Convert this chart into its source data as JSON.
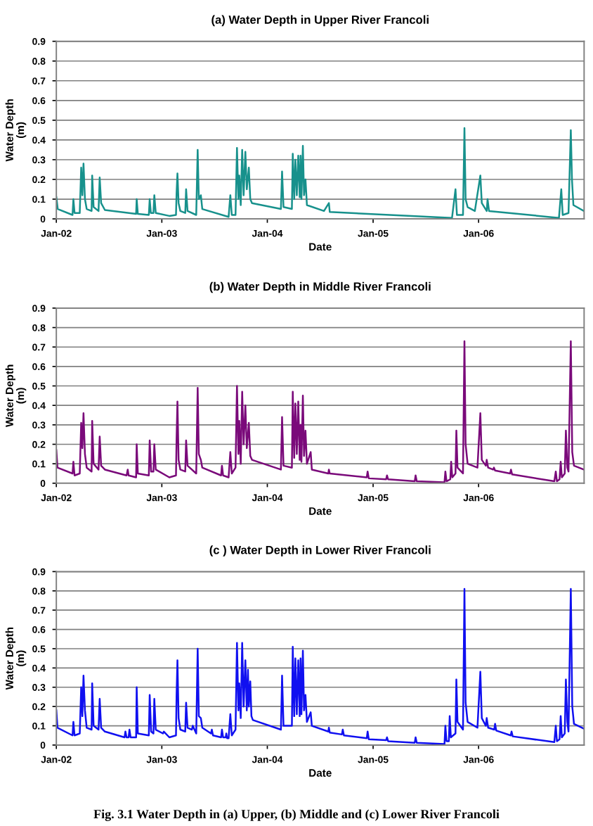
{
  "chart_data": [
    {
      "type": "line",
      "title": "(a) Water Depth in Upper River Francoli",
      "xlabel": "Date",
      "ylabel": "Water Depth\n(m)",
      "grid": "y",
      "line_style": "solid",
      "marker": "none",
      "xlim": [
        "2002-01-01",
        "2007-01-01"
      ],
      "xticks": [
        {
          "value": "2002-01-01",
          "label": "Jan-02"
        },
        {
          "value": "2003-01-01",
          "label": "Jan-03"
        },
        {
          "value": "2004-01-01",
          "label": "Jan-04"
        },
        {
          "value": "2005-01-01",
          "label": "Jan-05"
        },
        {
          "value": "2006-01-01",
          "label": "Jan-06"
        }
      ],
      "ylim": [
        0,
        0.9
      ],
      "yticks": [
        0,
        0.1,
        0.2,
        0.3,
        0.4,
        0.5,
        0.6,
        0.7,
        0.8,
        0.9
      ],
      "series": [
        {
          "color": "#17918c",
          "x": [
            "2002-01-01",
            "2002-01-06",
            "2002-02-26",
            "2002-03-01",
            "2002-03-05",
            "2002-03-23",
            "2002-03-28",
            "2002-04-01",
            "2002-04-05",
            "2002-04-10",
            "2002-04-16",
            "2002-05-03",
            "2002-05-05",
            "2002-05-10",
            "2002-05-27",
            "2002-05-31",
            "2002-06-05",
            "2002-06-18",
            "2002-10-04",
            "2002-10-06",
            "2002-10-10",
            "2002-11-17",
            "2002-11-20",
            "2002-11-24",
            "2002-12-03",
            "2002-12-06",
            "2002-12-11",
            "2003-01-27",
            "2003-02-19",
            "2003-02-21",
            "2003-02-24",
            "2003-02-28",
            "2003-03-06",
            "2003-03-23",
            "2003-03-26",
            "2003-03-31",
            "2003-04-30",
            "2003-05-05",
            "2003-05-09",
            "2003-05-16",
            "2003-05-21",
            "2003-08-20",
            "2003-08-26",
            "2003-08-31",
            "2003-09-13",
            "2003-09-18",
            "2003-09-23",
            "2003-09-26",
            "2003-10-01",
            "2003-10-06",
            "2003-10-11",
            "2003-10-17",
            "2003-10-22",
            "2003-10-29",
            "2003-11-03",
            "2003-11-09",
            "2004-02-17",
            "2004-02-21",
            "2004-02-26",
            "2004-03-26",
            "2004-03-29",
            "2004-04-03",
            "2004-04-07",
            "2004-04-12",
            "2004-04-17",
            "2004-04-22",
            "2004-04-25",
            "2004-04-28",
            "2004-05-03",
            "2004-05-07",
            "2004-05-12",
            "2004-05-17",
            "2004-07-15",
            "2004-08-01",
            "2004-08-04",
            "2005-10-01",
            "2005-10-13",
            "2005-10-18",
            "2005-11-08",
            "2005-11-13",
            "2005-11-17",
            "2005-11-24",
            "2005-12-19",
            "2006-01-07",
            "2006-01-12",
            "2006-01-29",
            "2006-02-01",
            "2006-02-06",
            "2006-10-06",
            "2006-10-14",
            "2006-10-19",
            "2006-11-08",
            "2006-11-16",
            "2006-11-20",
            "2006-11-25",
            "2006-12-31"
          ],
          "values": [
            0.11,
            0.05,
            0.02,
            0.1,
            0.03,
            0.03,
            0.26,
            0.12,
            0.28,
            0.1,
            0.05,
            0.04,
            0.22,
            0.06,
            0.04,
            0.21,
            0.08,
            0.045,
            0.025,
            0.1,
            0.025,
            0.02,
            0.1,
            0.03,
            0.03,
            0.12,
            0.03,
            0.015,
            0.02,
            0.13,
            0.23,
            0.08,
            0.04,
            0.03,
            0.15,
            0.04,
            0.02,
            0.35,
            0.1,
            0.12,
            0.05,
            0.01,
            0.12,
            0.02,
            0.02,
            0.36,
            0.1,
            0.22,
            0.07,
            0.35,
            0.12,
            0.34,
            0.15,
            0.26,
            0.1,
            0.08,
            0.05,
            0.24,
            0.06,
            0.05,
            0.33,
            0.1,
            0.3,
            0.12,
            0.32,
            0.11,
            0.32,
            0.1,
            0.37,
            0.12,
            0.2,
            0.07,
            0.04,
            0.08,
            0.035,
            0.005,
            0.15,
            0.02,
            0.02,
            0.46,
            0.1,
            0.06,
            0.04,
            0.22,
            0.08,
            0.04,
            0.1,
            0.04,
            0.005,
            0.15,
            0.02,
            0.03,
            0.45,
            0.2,
            0.07,
            0.04
          ]
        }
      ]
    },
    {
      "type": "line",
      "title": "(b) Water Depth in Middle River Francoli",
      "xlabel": "Date",
      "ylabel": "Water Depth\n(m)",
      "grid": "y",
      "line_style": "solid",
      "marker": "none",
      "xlim": [
        "2002-01-01",
        "2007-01-01"
      ],
      "xticks": [
        {
          "value": "2002-01-01",
          "label": "Jan-02"
        },
        {
          "value": "2003-01-01",
          "label": "Jan-03"
        },
        {
          "value": "2004-01-01",
          "label": "Jan-04"
        },
        {
          "value": "2005-01-01",
          "label": "Jan-05"
        },
        {
          "value": "2006-01-01",
          "label": "Jan-06"
        }
      ],
      "ylim": [
        0,
        0.9
      ],
      "yticks": [
        0,
        0.1,
        0.2,
        0.3,
        0.4,
        0.5,
        0.6,
        0.7,
        0.8,
        0.9
      ],
      "series": [
        {
          "color": "#7a0a7a",
          "x": [
            "2002-01-01",
            "2002-01-05",
            "2002-02-26",
            "2002-03-01",
            "2002-03-05",
            "2002-03-23",
            "2002-03-28",
            "2002-04-01",
            "2002-04-05",
            "2002-04-10",
            "2002-04-16",
            "2002-05-03",
            "2002-05-05",
            "2002-05-10",
            "2002-05-27",
            "2002-05-31",
            "2002-06-05",
            "2002-06-18",
            "2002-09-01",
            "2002-09-05",
            "2002-09-08",
            "2002-10-04",
            "2002-10-06",
            "2002-10-10",
            "2002-11-17",
            "2002-11-20",
            "2002-11-25",
            "2002-12-03",
            "2002-12-06",
            "2002-12-11",
            "2003-01-27",
            "2003-02-19",
            "2003-02-21",
            "2003-02-24",
            "2003-02-28",
            "2003-03-06",
            "2003-03-23",
            "2003-03-26",
            "2003-03-31",
            "2003-04-30",
            "2003-05-05",
            "2003-05-09",
            "2003-05-16",
            "2003-05-21",
            "2003-07-25",
            "2003-07-28",
            "2003-08-01",
            "2003-08-20",
            "2003-08-26",
            "2003-08-31",
            "2003-09-13",
            "2003-09-18",
            "2003-09-23",
            "2003-09-26",
            "2003-10-01",
            "2003-10-06",
            "2003-10-11",
            "2003-10-17",
            "2003-10-22",
            "2003-10-29",
            "2003-11-03",
            "2003-11-09",
            "2004-02-17",
            "2004-02-21",
            "2004-02-26",
            "2004-03-26",
            "2004-03-29",
            "2004-04-03",
            "2004-04-07",
            "2004-04-12",
            "2004-04-17",
            "2004-04-22",
            "2004-04-25",
            "2004-04-28",
            "2004-05-03",
            "2004-05-07",
            "2004-05-12",
            "2004-05-17",
            "2004-05-30",
            "2004-06-03",
            "2004-07-30",
            "2004-08-01",
            "2004-08-04",
            "2004-12-10",
            "2004-12-13",
            "2004-12-17",
            "2005-02-15",
            "2005-02-18",
            "2005-02-22",
            "2005-05-25",
            "2005-05-28",
            "2005-06-01",
            "2005-09-05",
            "2005-09-08",
            "2005-09-12",
            "2005-09-25",
            "2005-09-28",
            "2005-10-02",
            "2005-10-13",
            "2005-10-16",
            "2005-10-20",
            "2005-11-08",
            "2005-11-13",
            "2005-11-17",
            "2005-11-24",
            "2005-12-28",
            "2006-01-07",
            "2006-01-12",
            "2006-01-26",
            "2006-01-29",
            "2006-02-03",
            "2006-02-20",
            "2006-02-23",
            "2006-02-27",
            "2006-04-20",
            "2006-04-23",
            "2006-04-27",
            "2006-09-20",
            "2006-09-25",
            "2006-09-29",
            "2006-10-08",
            "2006-10-12",
            "2006-10-16",
            "2006-10-26",
            "2006-10-30",
            "2006-11-04",
            "2006-11-08",
            "2006-11-16",
            "2006-11-21",
            "2006-11-27",
            "2006-12-31"
          ],
          "values": [
            0.17,
            0.08,
            0.05,
            0.11,
            0.04,
            0.05,
            0.31,
            0.18,
            0.36,
            0.15,
            0.08,
            0.06,
            0.32,
            0.1,
            0.07,
            0.24,
            0.09,
            0.07,
            0.04,
            0.07,
            0.04,
            0.03,
            0.2,
            0.05,
            0.04,
            0.22,
            0.06,
            0.06,
            0.2,
            0.07,
            0.03,
            0.04,
            0.23,
            0.42,
            0.12,
            0.07,
            0.06,
            0.22,
            0.09,
            0.05,
            0.49,
            0.15,
            0.12,
            0.08,
            0.04,
            0.09,
            0.04,
            0.03,
            0.16,
            0.05,
            0.08,
            0.5,
            0.15,
            0.32,
            0.1,
            0.47,
            0.2,
            0.4,
            0.18,
            0.31,
            0.14,
            0.12,
            0.07,
            0.34,
            0.09,
            0.08,
            0.47,
            0.13,
            0.41,
            0.15,
            0.42,
            0.12,
            0.3,
            0.11,
            0.45,
            0.14,
            0.27,
            0.1,
            0.16,
            0.07,
            0.05,
            0.07,
            0.05,
            0.03,
            0.06,
            0.025,
            0.02,
            0.04,
            0.02,
            0.01,
            0.04,
            0.01,
            0.005,
            0.06,
            0.01,
            0.02,
            0.11,
            0.03,
            0.05,
            0.27,
            0.08,
            0.05,
            0.73,
            0.2,
            0.1,
            0.08,
            0.36,
            0.12,
            0.09,
            0.12,
            0.08,
            0.07,
            0.08,
            0.065,
            0.05,
            0.07,
            0.045,
            0.01,
            0.06,
            0.01,
            0.02,
            0.11,
            0.03,
            0.05,
            0.27,
            0.08,
            0.06,
            0.73,
            0.16,
            0.09,
            0.07
          ]
        }
      ]
    },
    {
      "type": "line",
      "title": "(c ) Water Depth in Lower River Francoli",
      "xlabel": "Date",
      "ylabel": "Water Depth\n(m)",
      "grid": "y",
      "line_style": "solid",
      "marker": "none",
      "annotations": [
        "Fig. 3.1 Water Depth in (a) Upper, (b) Middle and (c) Lower River Francoli"
      ],
      "xlim": [
        "2002-01-01",
        "2007-01-01"
      ],
      "xticks": [
        {
          "value": "2002-01-01",
          "label": "Jan-02"
        },
        {
          "value": "2003-01-01",
          "label": "Jan-03"
        },
        {
          "value": "2004-01-01",
          "label": "Jan-04"
        },
        {
          "value": "2005-01-01",
          "label": "Jan-05"
        },
        {
          "value": "2006-01-01",
          "label": "Jan-06"
        }
      ],
      "ylim": [
        0,
        0.9
      ],
      "yticks": [
        0,
        0.1,
        0.2,
        0.3,
        0.4,
        0.5,
        0.6,
        0.7,
        0.8,
        0.9
      ],
      "series": [
        {
          "color": "#1010f0",
          "x": [
            "2002-01-01",
            "2002-01-05",
            "2002-02-26",
            "2002-03-01",
            "2002-03-05",
            "2002-03-23",
            "2002-03-28",
            "2002-04-01",
            "2002-04-05",
            "2002-04-10",
            "2002-04-16",
            "2002-05-03",
            "2002-05-05",
            "2002-05-10",
            "2002-05-27",
            "2002-05-31",
            "2002-06-05",
            "2002-06-18",
            "2002-08-25",
            "2002-08-28",
            "2002-09-01",
            "2002-09-08",
            "2002-09-11",
            "2002-09-15",
            "2002-10-04",
            "2002-10-06",
            "2002-10-10",
            "2002-11-17",
            "2002-11-20",
            "2002-11-25",
            "2002-12-03",
            "2002-12-06",
            "2002-12-11",
            "2003-01-05",
            "2003-01-08",
            "2003-01-27",
            "2003-02-19",
            "2003-02-21",
            "2003-02-24",
            "2003-02-28",
            "2003-03-06",
            "2003-03-23",
            "2003-03-26",
            "2003-03-31",
            "2003-04-15",
            "2003-04-18",
            "2003-04-30",
            "2003-05-05",
            "2003-05-09",
            "2003-05-16",
            "2003-05-21",
            "2003-06-20",
            "2003-06-23",
            "2003-06-27",
            "2003-07-25",
            "2003-07-28",
            "2003-08-01",
            "2003-08-10",
            "2003-08-12",
            "2003-08-15",
            "2003-08-20",
            "2003-08-26",
            "2003-08-31",
            "2003-09-13",
            "2003-09-18",
            "2003-09-23",
            "2003-09-26",
            "2003-10-01",
            "2003-10-06",
            "2003-10-11",
            "2003-10-17",
            "2003-10-22",
            "2003-10-26",
            "2003-10-29",
            "2003-11-03",
            "2003-11-07",
            "2003-11-12",
            "2004-02-17",
            "2004-02-19",
            "2004-02-21",
            "2004-02-26",
            "2004-03-26",
            "2004-03-29",
            "2004-04-03",
            "2004-04-07",
            "2004-04-12",
            "2004-04-17",
            "2004-04-22",
            "2004-04-25",
            "2004-04-28",
            "2004-05-03",
            "2004-05-07",
            "2004-05-12",
            "2004-05-17",
            "2004-05-30",
            "2004-06-03",
            "2004-07-30",
            "2004-08-01",
            "2004-08-04",
            "2004-09-15",
            "2004-09-18",
            "2004-09-22",
            "2004-12-10",
            "2004-12-13",
            "2004-12-17",
            "2005-02-15",
            "2005-02-18",
            "2005-02-22",
            "2005-05-25",
            "2005-05-28",
            "2005-06-01",
            "2005-09-05",
            "2005-09-08",
            "2005-09-12",
            "2005-09-20",
            "2005-09-23",
            "2005-09-27",
            "2005-10-13",
            "2005-10-16",
            "2005-10-20",
            "2005-11-08",
            "2005-11-13",
            "2005-11-17",
            "2005-11-24",
            "2005-12-28",
            "2006-01-07",
            "2006-01-12",
            "2006-01-26",
            "2006-01-29",
            "2006-02-03",
            "2006-02-24",
            "2006-02-27",
            "2006-03-03",
            "2006-04-22",
            "2006-04-25",
            "2006-04-29",
            "2006-09-20",
            "2006-09-25",
            "2006-09-29",
            "2006-10-08",
            "2006-10-12",
            "2006-10-16",
            "2006-10-26",
            "2006-10-30",
            "2006-11-04",
            "2006-11-08",
            "2006-11-16",
            "2006-11-21",
            "2006-11-27",
            "2006-12-31"
          ],
          "values": [
            0.18,
            0.09,
            0.05,
            0.12,
            0.05,
            0.06,
            0.3,
            0.15,
            0.36,
            0.18,
            0.09,
            0.08,
            0.32,
            0.1,
            0.08,
            0.24,
            0.09,
            0.07,
            0.04,
            0.07,
            0.04,
            0.04,
            0.08,
            0.04,
            0.04,
            0.3,
            0.06,
            0.05,
            0.26,
            0.07,
            0.06,
            0.24,
            0.08,
            0.06,
            0.07,
            0.04,
            0.05,
            0.26,
            0.44,
            0.14,
            0.08,
            0.07,
            0.22,
            0.09,
            0.08,
            0.1,
            0.06,
            0.5,
            0.15,
            0.14,
            0.09,
            0.06,
            0.08,
            0.05,
            0.04,
            0.08,
            0.04,
            0.04,
            0.06,
            0.035,
            0.035,
            0.16,
            0.05,
            0.08,
            0.53,
            0.18,
            0.32,
            0.14,
            0.53,
            0.2,
            0.44,
            0.18,
            0.39,
            0.2,
            0.33,
            0.15,
            0.13,
            0.08,
            0.21,
            0.36,
            0.1,
            0.1,
            0.51,
            0.15,
            0.45,
            0.16,
            0.44,
            0.15,
            0.45,
            0.16,
            0.49,
            0.18,
            0.26,
            0.12,
            0.17,
            0.1,
            0.07,
            0.09,
            0.065,
            0.055,
            0.08,
            0.05,
            0.035,
            0.07,
            0.03,
            0.025,
            0.04,
            0.02,
            0.012,
            0.04,
            0.012,
            0.005,
            0.1,
            0.02,
            0.02,
            0.15,
            0.04,
            0.06,
            0.34,
            0.12,
            0.08,
            0.81,
            0.22,
            0.12,
            0.09,
            0.38,
            0.14,
            0.1,
            0.14,
            0.09,
            0.08,
            0.11,
            0.075,
            0.05,
            0.07,
            0.045,
            0.015,
            0.1,
            0.02,
            0.03,
            0.15,
            0.04,
            0.06,
            0.34,
            0.12,
            0.07,
            0.81,
            0.2,
            0.11,
            0.085
          ]
        }
      ]
    }
  ]
}
